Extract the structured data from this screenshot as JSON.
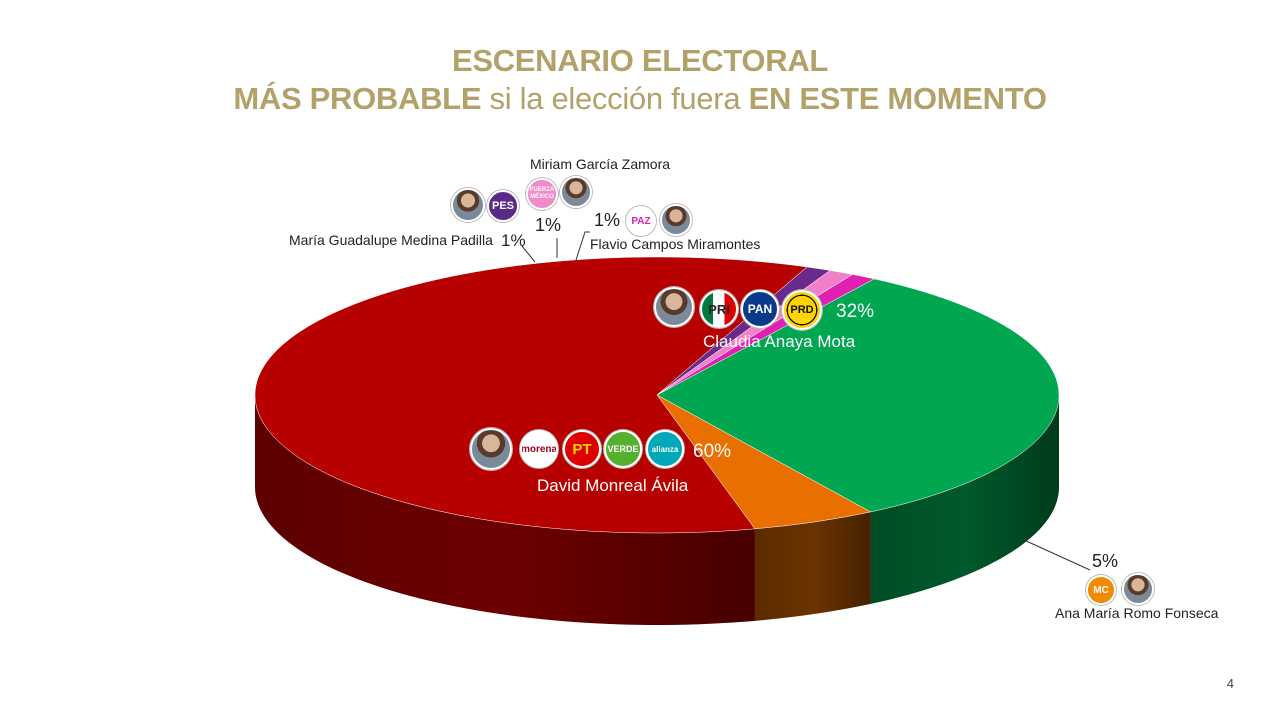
{
  "title": {
    "line1": "ESCENARIO ELECTORAL",
    "line2_bold1": "MÁS PROBABLE",
    "line2_normal": " si la elección fuera ",
    "line2_bold2": "EN ESTE MOMENTO"
  },
  "chart_data": {
    "type": "pie",
    "slices": [
      {
        "label": "Claudia Anaya Mota",
        "value": 32,
        "value_label": "32%",
        "color": "#00a650",
        "side_color": "#005a2b",
        "parties": [
          "PRI",
          "PAN",
          "PRD"
        ]
      },
      {
        "label": "Ana María Romo Fonseca",
        "value": 5,
        "value_label": "5%",
        "color": "#e86f00",
        "side_color": "#6b3300",
        "parties": [
          "MC"
        ]
      },
      {
        "label": "David Monreal Ávila",
        "value": 60,
        "value_label": "60%",
        "color": "#b70000",
        "side_color": "#6d0000",
        "parties": [
          "morena",
          "PT",
          "VERDE",
          "alianza"
        ]
      },
      {
        "label": "María Guadalupe Medina Padilla",
        "value": 1,
        "value_label": "1%",
        "color": "#6a2a8c",
        "side_color": "#3a1050",
        "parties": [
          "PES"
        ]
      },
      {
        "label": "Miriam García Zamora",
        "value": 1,
        "value_label": "1%",
        "color": "#f080c8",
        "side_color": "#8a3a70",
        "parties": [
          "FUERZA MÉXICO"
        ]
      },
      {
        "label": "Flavio Campos Miramontes",
        "value": 1,
        "value_label": "1%",
        "color": "#e020b0",
        "side_color": "#7a0a60",
        "parties": [
          "PAZ"
        ]
      }
    ]
  },
  "page_number": "4"
}
